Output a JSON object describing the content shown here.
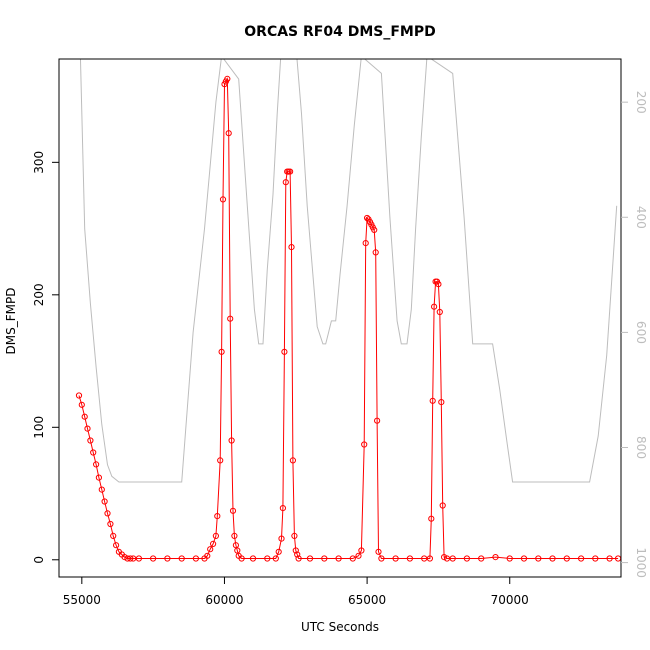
{
  "chart_data": {
    "type": "line",
    "title": "ORCAS RF04 DMS_FMPD",
    "xlabel": "UTC Seconds",
    "ylabel": "DMS_FMPD",
    "xlim": [
      54200,
      73900
    ],
    "ylim": [
      -13,
      378
    ],
    "x_ticks": [
      55000,
      60000,
      65000,
      70000
    ],
    "y_ticks": [
      0,
      100,
      200,
      300
    ],
    "grid": false,
    "colors": {
      "dms": "#ff0000",
      "altitude": "#bdbdbd"
    },
    "series": [
      {
        "key": "dms",
        "style": "points-and-lines",
        "points": [
          [
            54900,
            124
          ],
          [
            55000,
            117
          ],
          [
            55100,
            108
          ],
          [
            55200,
            99
          ],
          [
            55300,
            90
          ],
          [
            55400,
            81
          ],
          [
            55500,
            72
          ],
          [
            55600,
            62
          ],
          [
            55700,
            53
          ],
          [
            55800,
            44
          ],
          [
            55900,
            35
          ],
          [
            56000,
            27
          ],
          [
            56100,
            18
          ],
          [
            56200,
            11
          ],
          [
            56300,
            6
          ],
          [
            56400,
            4
          ],
          [
            56500,
            2
          ],
          [
            56600,
            1
          ],
          [
            56700,
            1
          ],
          [
            56800,
            1
          ],
          [
            57000,
            1
          ],
          [
            57500,
            1
          ],
          [
            58000,
            1
          ],
          [
            58500,
            1
          ],
          [
            59000,
            1
          ],
          [
            59300,
            1
          ],
          [
            59400,
            3
          ],
          [
            59500,
            8
          ],
          [
            59600,
            12
          ],
          [
            59700,
            18
          ],
          [
            59750,
            33
          ],
          [
            59850,
            75
          ],
          [
            59900,
            157
          ],
          [
            59950,
            272
          ],
          [
            60000,
            359
          ],
          [
            60050,
            361
          ],
          [
            60100,
            363
          ],
          [
            60150,
            322
          ],
          [
            60200,
            182
          ],
          [
            60250,
            90
          ],
          [
            60300,
            37
          ],
          [
            60350,
            18
          ],
          [
            60400,
            11
          ],
          [
            60450,
            7
          ],
          [
            60500,
            3
          ],
          [
            60600,
            1
          ],
          [
            61000,
            1
          ],
          [
            61500,
            1
          ],
          [
            61800,
            1
          ],
          [
            61900,
            6
          ],
          [
            62000,
            16
          ],
          [
            62050,
            39
          ],
          [
            62100,
            157
          ],
          [
            62150,
            285
          ],
          [
            62200,
            293
          ],
          [
            62250,
            293
          ],
          [
            62300,
            293
          ],
          [
            62350,
            236
          ],
          [
            62400,
            75
          ],
          [
            62450,
            18
          ],
          [
            62500,
            7
          ],
          [
            62550,
            4
          ],
          [
            62600,
            1
          ],
          [
            63000,
            1
          ],
          [
            63500,
            1
          ],
          [
            64000,
            1
          ],
          [
            64500,
            1
          ],
          [
            64700,
            3
          ],
          [
            64800,
            7
          ],
          [
            64900,
            87
          ],
          [
            64950,
            239
          ],
          [
            65000,
            258
          ],
          [
            65050,
            257
          ],
          [
            65100,
            255
          ],
          [
            65150,
            253
          ],
          [
            65200,
            251
          ],
          [
            65250,
            249
          ],
          [
            65300,
            232
          ],
          [
            65350,
            105
          ],
          [
            65400,
            6
          ],
          [
            65500,
            1
          ],
          [
            66000,
            1
          ],
          [
            66500,
            1
          ],
          [
            67000,
            1
          ],
          [
            67200,
            1
          ],
          [
            67250,
            31
          ],
          [
            67300,
            120
          ],
          [
            67350,
            191
          ],
          [
            67400,
            210
          ],
          [
            67450,
            210
          ],
          [
            67500,
            208
          ],
          [
            67550,
            187
          ],
          [
            67600,
            119
          ],
          [
            67650,
            41
          ],
          [
            67700,
            2
          ],
          [
            67800,
            1
          ],
          [
            68000,
            1
          ],
          [
            68500,
            1
          ],
          [
            69000,
            1
          ],
          [
            69500,
            2
          ],
          [
            70000,
            1
          ],
          [
            70500,
            1
          ],
          [
            71000,
            1
          ],
          [
            71500,
            1
          ],
          [
            72000,
            1
          ],
          [
            72500,
            1
          ],
          [
            73000,
            1
          ],
          [
            73500,
            1
          ],
          [
            73800,
            1
          ]
        ]
      },
      {
        "key": "altitude",
        "style": "line",
        "right_axis": {
          "ticks": [
            200,
            400,
            600,
            800,
            1000
          ],
          "lim": [
            1025,
            125
          ]
        },
        "points": [
          [
            54950,
            120
          ],
          [
            55100,
            420
          ],
          [
            55300,
            550
          ],
          [
            55500,
            660
          ],
          [
            55700,
            760
          ],
          [
            55900,
            830
          ],
          [
            56050,
            850
          ],
          [
            56300,
            860
          ],
          [
            57000,
            860
          ],
          [
            58000,
            860
          ],
          [
            58500,
            860
          ],
          [
            58900,
            600
          ],
          [
            59300,
            420
          ],
          [
            59700,
            200
          ],
          [
            59900,
            120
          ],
          [
            60500,
            160
          ],
          [
            60800,
            380
          ],
          [
            61050,
            560
          ],
          [
            61200,
            620
          ],
          [
            61350,
            620
          ],
          [
            61500,
            490
          ],
          [
            61700,
            360
          ],
          [
            61850,
            220
          ],
          [
            62000,
            100
          ],
          [
            62500,
            100
          ],
          [
            62700,
            220
          ],
          [
            62900,
            380
          ],
          [
            63100,
            500
          ],
          [
            63250,
            590
          ],
          [
            63450,
            620
          ],
          [
            63550,
            620
          ],
          [
            63650,
            600
          ],
          [
            63750,
            580
          ],
          [
            63900,
            580
          ],
          [
            64050,
            500
          ],
          [
            64300,
            380
          ],
          [
            64550,
            240
          ],
          [
            64800,
            120
          ],
          [
            65500,
            150
          ],
          [
            65800,
            400
          ],
          [
            66050,
            580
          ],
          [
            66200,
            620
          ],
          [
            66400,
            620
          ],
          [
            66550,
            560
          ],
          [
            66700,
            420
          ],
          [
            66900,
            260
          ],
          [
            67100,
            120
          ],
          [
            68000,
            150
          ],
          [
            68400,
            400
          ],
          [
            68700,
            620
          ],
          [
            69400,
            620
          ],
          [
            69650,
            700
          ],
          [
            69900,
            790
          ],
          [
            70100,
            860
          ],
          [
            71000,
            860
          ],
          [
            72000,
            860
          ],
          [
            72800,
            860
          ],
          [
            73100,
            780
          ],
          [
            73400,
            640
          ],
          [
            73750,
            380
          ]
        ]
      }
    ]
  }
}
